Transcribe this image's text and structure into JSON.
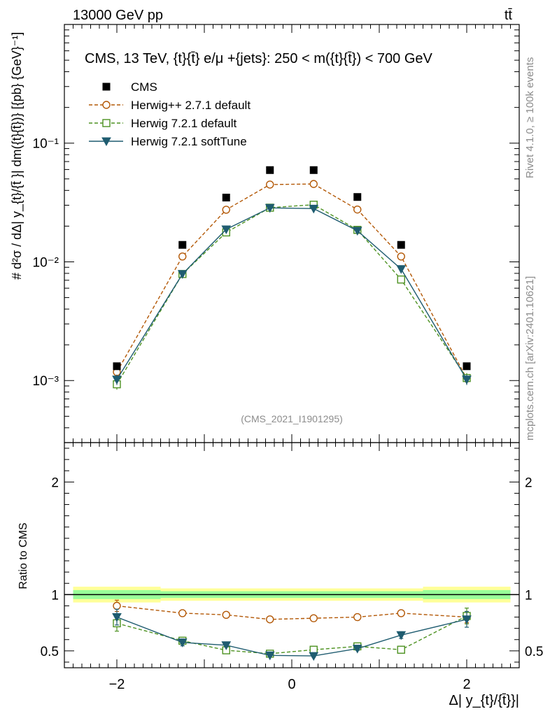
{
  "header": {
    "left": "13000 GeV pp",
    "right": "tt̄"
  },
  "side_text": {
    "rivet": "Rivet 4.1.0, ≥ 100k events",
    "mcplots": "mcplots.cern.ch [arXiv:2401.10621]"
  },
  "chart_data": {
    "type": "line",
    "title": "CMS, 13 TeV, {t}{t̄} e/μ +{jets}: 250 < m({t}{t̄}) < 700 GeV",
    "analysis_label": "(CMS_2021_I1901295)",
    "xlabel": "Δ| y_{t}/{t̄}}|",
    "ylabel": "# d²σ / dΔ| y_{t}/{t̄ }| dm({t}{t̄})} [{pb} {GeV}⁻¹]",
    "ylabel_ratio": "Ratio to CMS",
    "xlim": [
      -2.6,
      2.6
    ],
    "ylim": [
      0.0003,
      1.0
    ],
    "ylim_ratio": [
      0.35,
      2.35
    ],
    "yscale": "log",
    "x_ticks": [
      -2,
      0,
      2
    ],
    "x_tick_labels": [
      "−2",
      "0",
      "2"
    ],
    "y_ticks": [
      0.001,
      0.01,
      0.1
    ],
    "y_tick_labels": [
      "10⁻³",
      "10⁻²",
      "10⁻¹"
    ],
    "ratio_ticks": [
      0.5,
      1,
      2
    ],
    "ratio_tick_labels": [
      "0.5",
      "1",
      "2"
    ],
    "x": [
      -2.0,
      -1.25,
      -0.75,
      -0.25,
      0.25,
      0.75,
      1.25,
      2.0
    ],
    "bin_edges": [
      -2.5,
      -1.5,
      -1.0,
      -0.5,
      0.0,
      0.5,
      1.0,
      1.5,
      2.5
    ],
    "legend": [
      "CMS",
      "Herwig++ 2.7.1 default",
      "Herwig 7.2.1 default",
      "Herwig 7.2.1 softTune"
    ],
    "data": {
      "name": "CMS",
      "values": [
        0.00132,
        0.0139,
        0.0348,
        0.0593,
        0.0593,
        0.0352,
        0.0139,
        0.00132
      ],
      "rel_unc_inner": [
        0.04,
        0.03,
        0.03,
        0.03,
        0.03,
        0.03,
        0.03,
        0.04
      ],
      "rel_unc_outer": [
        0.07,
        0.055,
        0.055,
        0.055,
        0.055,
        0.055,
        0.055,
        0.07
      ]
    },
    "series": [
      {
        "name": "Herwig++ 2.7.1 default",
        "color": "#b35806",
        "dash": "5,3",
        "marker": "circle",
        "values": [
          0.00118,
          0.0111,
          0.0275,
          0.0448,
          0.0453,
          0.0276,
          0.0111,
          0.00104
        ],
        "ratio": [
          0.9,
          0.835,
          0.82,
          0.78,
          0.79,
          0.8,
          0.835,
          0.8
        ],
        "ratio_err": [
          0.05,
          0.025,
          0.012,
          0.008,
          0.008,
          0.012,
          0.025,
          0.05
        ]
      },
      {
        "name": "Herwig 7.2.1 default",
        "color": "#4d9221",
        "dash": "5,3",
        "marker": "square",
        "values": [
          0.00093,
          0.0079,
          0.0177,
          0.0286,
          0.0303,
          0.0186,
          0.0071,
          0.00105
        ],
        "ratio": [
          0.745,
          0.59,
          0.505,
          0.475,
          0.51,
          0.54,
          0.51,
          0.81
        ],
        "ratio_err": [
          0.07,
          0.03,
          0.015,
          0.01,
          0.01,
          0.015,
          0.03,
          0.07
        ]
      },
      {
        "name": "Herwig 7.2.1 softTune",
        "color": "#1f5c70",
        "dash": "",
        "marker": "triangle-down",
        "values": [
          0.00102,
          0.0079,
          0.0188,
          0.0285,
          0.0281,
          0.0183,
          0.0087,
          0.00102
        ],
        "ratio": [
          0.8,
          0.575,
          0.55,
          0.46,
          0.455,
          0.52,
          0.64,
          0.78
        ],
        "ratio_err": [
          0.07,
          0.03,
          0.015,
          0.01,
          0.01,
          0.015,
          0.03,
          0.07
        ]
      }
    ]
  }
}
